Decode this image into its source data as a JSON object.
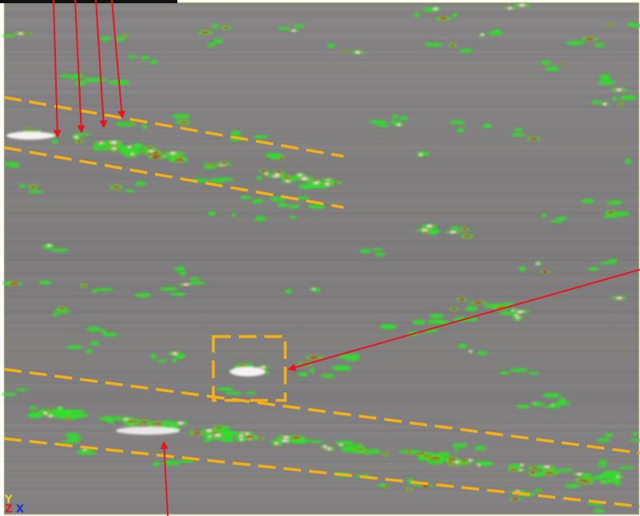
{
  "axis_labels": {
    "y": "Y",
    "z": "Z",
    "x": "X"
  }
}
